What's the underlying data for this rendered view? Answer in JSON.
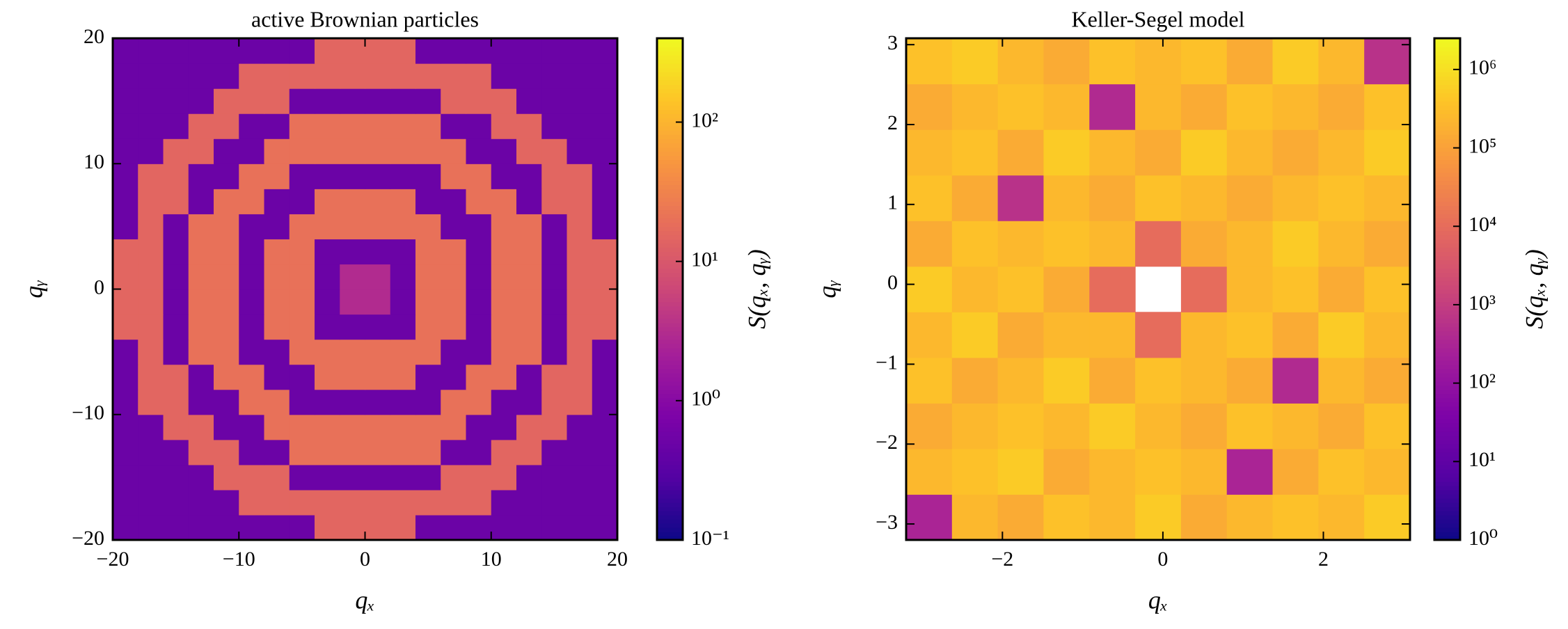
{
  "chart_data": [
    {
      "type": "heatmap",
      "title": "active Brownian particles",
      "xlabel": "qₓ",
      "ylabel": "qᵧ",
      "xlim": [
        -20,
        20
      ],
      "ylim": [
        -20,
        20
      ],
      "xticks": [
        {
          "value": -20,
          "label": "−20"
        },
        {
          "value": -10,
          "label": "−10"
        },
        0,
        10,
        20
      ],
      "yticks": [
        {
          "value": -20,
          "label": "−20"
        },
        {
          "value": -10,
          "label": "−10"
        },
        0,
        10,
        20
      ],
      "colormap": "plasma",
      "zscale": "log",
      "zlim": [
        0.1,
        400
      ],
      "colorbar_label": "S(qₓ, qᵧ)",
      "colorbar_ticks": [
        {
          "value": 0.1,
          "label": "10⁻¹"
        },
        {
          "value": 1,
          "label": "10⁰"
        },
        {
          "value": 10,
          "label": "10¹"
        },
        {
          "value": 100,
          "label": "10²"
        }
      ],
      "z": [
        [
          0.5,
          0.5,
          0.5,
          0.5,
          0.5,
          0.5,
          0.5,
          0.5,
          15,
          15,
          15,
          15,
          0.5,
          0.5,
          0.5,
          0.5,
          0.5,
          0.5,
          0.5,
          0.5
        ],
        [
          0.5,
          0.5,
          0.5,
          0.5,
          0.5,
          15,
          15,
          15,
          15,
          15,
          15,
          15,
          15,
          15,
          15,
          0.5,
          0.5,
          0.5,
          0.5,
          0.5
        ],
        [
          0.5,
          0.5,
          0.5,
          0.5,
          15,
          15,
          15,
          0.5,
          0.5,
          0.5,
          0.5,
          0.5,
          0.5,
          15,
          15,
          15,
          0.5,
          0.5,
          0.5,
          0.5
        ],
        [
          0.5,
          0.5,
          0.5,
          15,
          15,
          0.5,
          0.5,
          20,
          20,
          20,
          20,
          20,
          20,
          0.5,
          0.5,
          15,
          15,
          0.5,
          0.5,
          0.5
        ],
        [
          0.5,
          0.5,
          15,
          15,
          0.5,
          0.5,
          20,
          20,
          20,
          20,
          20,
          20,
          20,
          20,
          0.5,
          0.5,
          15,
          15,
          0.5,
          0.5
        ],
        [
          0.5,
          15,
          15,
          0.5,
          0.5,
          20,
          20,
          0.5,
          0.5,
          0.5,
          0.5,
          0.5,
          0.5,
          20,
          20,
          0.5,
          0.5,
          15,
          15,
          0.5
        ],
        [
          0.5,
          15,
          15,
          0.5,
          20,
          20,
          0.5,
          0.5,
          20,
          20,
          20,
          20,
          0.5,
          0.5,
          20,
          20,
          0.5,
          15,
          15,
          0.5
        ],
        [
          0.5,
          15,
          0.5,
          20,
          20,
          0.5,
          0.5,
          20,
          20,
          20,
          20,
          20,
          20,
          0.5,
          0.5,
          20,
          20,
          0.5,
          15,
          0.5
        ],
        [
          15,
          15,
          0.5,
          20,
          20,
          0.5,
          20,
          20,
          0.5,
          0.5,
          0.5,
          0.5,
          20,
          20,
          0.5,
          20,
          20,
          0.5,
          15,
          15
        ],
        [
          15,
          15,
          0.5,
          20,
          20,
          0.5,
          20,
          20,
          0.5,
          3,
          3,
          0.5,
          20,
          20,
          0.5,
          20,
          20,
          0.5,
          15,
          15
        ],
        [
          15,
          15,
          0.5,
          20,
          20,
          0.5,
          20,
          20,
          0.5,
          3,
          3,
          0.5,
          20,
          20,
          0.5,
          20,
          20,
          0.5,
          15,
          15
        ],
        [
          15,
          15,
          0.5,
          20,
          20,
          0.5,
          20,
          20,
          0.5,
          0.5,
          0.5,
          0.5,
          20,
          20,
          0.5,
          20,
          20,
          0.5,
          15,
          15
        ],
        [
          0.5,
          15,
          0.5,
          20,
          20,
          0.5,
          0.5,
          20,
          20,
          20,
          20,
          20,
          20,
          0.5,
          0.5,
          20,
          20,
          0.5,
          15,
          0.5
        ],
        [
          0.5,
          15,
          15,
          0.5,
          20,
          20,
          0.5,
          0.5,
          20,
          20,
          20,
          20,
          0.5,
          0.5,
          20,
          20,
          0.5,
          15,
          15,
          0.5
        ],
        [
          0.5,
          15,
          15,
          0.5,
          0.5,
          20,
          20,
          0.5,
          0.5,
          0.5,
          0.5,
          0.5,
          0.5,
          20,
          20,
          0.5,
          0.5,
          15,
          15,
          0.5
        ],
        [
          0.5,
          0.5,
          15,
          15,
          0.5,
          0.5,
          20,
          20,
          20,
          20,
          20,
          20,
          20,
          20,
          0.5,
          0.5,
          15,
          15,
          0.5,
          0.5
        ],
        [
          0.5,
          0.5,
          0.5,
          15,
          15,
          0.5,
          0.5,
          20,
          20,
          20,
          20,
          20,
          20,
          0.5,
          0.5,
          15,
          15,
          0.5,
          0.5,
          0.5
        ],
        [
          0.5,
          0.5,
          0.5,
          0.5,
          15,
          15,
          15,
          0.5,
          0.5,
          0.5,
          0.5,
          0.5,
          0.5,
          15,
          15,
          15,
          0.5,
          0.5,
          0.5,
          0.5
        ],
        [
          0.5,
          0.5,
          0.5,
          0.5,
          0.5,
          15,
          15,
          15,
          15,
          15,
          15,
          15,
          15,
          15,
          15,
          0.5,
          0.5,
          0.5,
          0.5,
          0.5
        ],
        [
          0.5,
          0.5,
          0.5,
          0.5,
          0.5,
          0.5,
          0.5,
          0.5,
          15,
          15,
          15,
          15,
          0.5,
          0.5,
          0.5,
          0.5,
          0.5,
          0.5,
          0.5,
          0.5
        ]
      ]
    },
    {
      "type": "heatmap",
      "title": "Keller-Segel model",
      "xlabel": "qₓ",
      "ylabel": "qᵧ",
      "xlim": [
        -3.2,
        3.08
      ],
      "ylim": [
        -3.2,
        3.08
      ],
      "xticks": [
        {
          "value": -2,
          "label": "−2"
        },
        0,
        2
      ],
      "yticks": [
        {
          "value": -3,
          "label": "−3"
        },
        {
          "value": -2,
          "label": "−2"
        },
        {
          "value": -1,
          "label": "−1"
        },
        0,
        1,
        2,
        3
      ],
      "colormap": "plasma",
      "zscale": "log",
      "zlim": [
        1,
        2500000
      ],
      "colorbar_label": "S(qₓ, qᵧ)",
      "colorbar_ticks": [
        {
          "value": 1,
          "label": "10⁰"
        },
        {
          "value": 10,
          "label": "10¹"
        },
        {
          "value": 100,
          "label": "10²"
        },
        {
          "value": 1000,
          "label": "10³"
        },
        {
          "value": 10000,
          "label": "10⁴"
        },
        {
          "value": 100000,
          "label": "10⁵"
        },
        {
          "value": 1000000,
          "label": "10⁶"
        }
      ],
      "z": [
        [
          300,
          250000,
          150000,
          350000,
          250000,
          500000,
          150000,
          250000,
          350000,
          250000,
          500000
        ],
        [
          250000,
          350000,
          500000,
          150000,
          250000,
          350000,
          250000,
          300,
          150000,
          350000,
          250000
        ],
        [
          150000,
          250000,
          350000,
          250000,
          500000,
          250000,
          150000,
          350000,
          250000,
          150000,
          350000
        ],
        [
          350000,
          150000,
          250000,
          500000,
          150000,
          350000,
          250000,
          150000,
          400,
          250000,
          150000
        ],
        [
          250000,
          500000,
          150000,
          250000,
          250000,
          10000,
          250000,
          350000,
          150000,
          500000,
          250000
        ],
        [
          500000,
          250000,
          350000,
          150000,
          10000,
          null,
          10000,
          250000,
          350000,
          150000,
          350000
        ],
        [
          150000,
          350000,
          250000,
          350000,
          250000,
          10000,
          150000,
          250000,
          500000,
          250000,
          150000
        ],
        [
          350000,
          150000,
          600,
          250000,
          150000,
          350000,
          250000,
          150000,
          250000,
          350000,
          250000
        ],
        [
          250000,
          350000,
          150000,
          500000,
          250000,
          150000,
          500000,
          250000,
          150000,
          250000,
          500000
        ],
        [
          150000,
          250000,
          350000,
          250000,
          400,
          250000,
          150000,
          350000,
          250000,
          150000,
          350000
        ],
        [
          350000,
          500000,
          250000,
          150000,
          350000,
          250000,
          350000,
          150000,
          500000,
          250000,
          600
        ]
      ]
    }
  ]
}
